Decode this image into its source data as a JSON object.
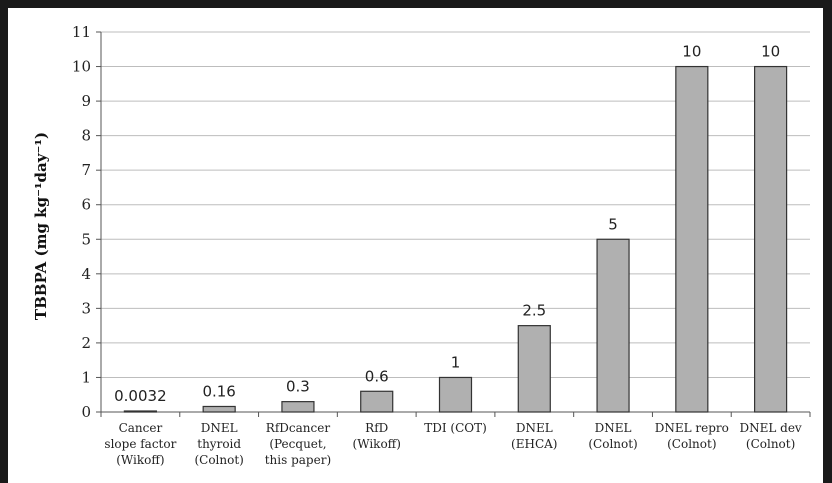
{
  "chart_data": {
    "type": "bar",
    "title": "",
    "xlabel": "",
    "ylabel": "TBBPA (mg kg⁻¹day⁻¹)",
    "ylim": [
      0,
      11
    ],
    "yticks": [
      0,
      1,
      2,
      3,
      4,
      5,
      6,
      7,
      8,
      9,
      10,
      11
    ],
    "grid": true,
    "legend": "none",
    "categories": [
      [
        "Cancer",
        "slope factor",
        "(Wikoff)"
      ],
      [
        "DNEL",
        "thyroid",
        "(Colnot)"
      ],
      [
        "RfDcancer",
        "(Pecquet,",
        "this paper)"
      ],
      [
        "RfD",
        "(Wikoff)"
      ],
      [
        "TDI (COT)"
      ],
      [
        "DNEL",
        "(EHCA)"
      ],
      [
        "DNEL",
        "(Colnot)"
      ],
      [
        "DNEL repro",
        "(Colnot)"
      ],
      [
        "DNEL dev",
        "(Colnot)"
      ]
    ],
    "values": [
      0.0032,
      0.16,
      0.3,
      0.6,
      1,
      2.5,
      5,
      10,
      10
    ],
    "data_labels": [
      "0.0032",
      "0.16",
      "0.3",
      "0.6",
      "1",
      "2.5",
      "5",
      "10",
      "10"
    ],
    "bar_color": "#b0b0b0",
    "bar_edge_color": "#333333"
  }
}
